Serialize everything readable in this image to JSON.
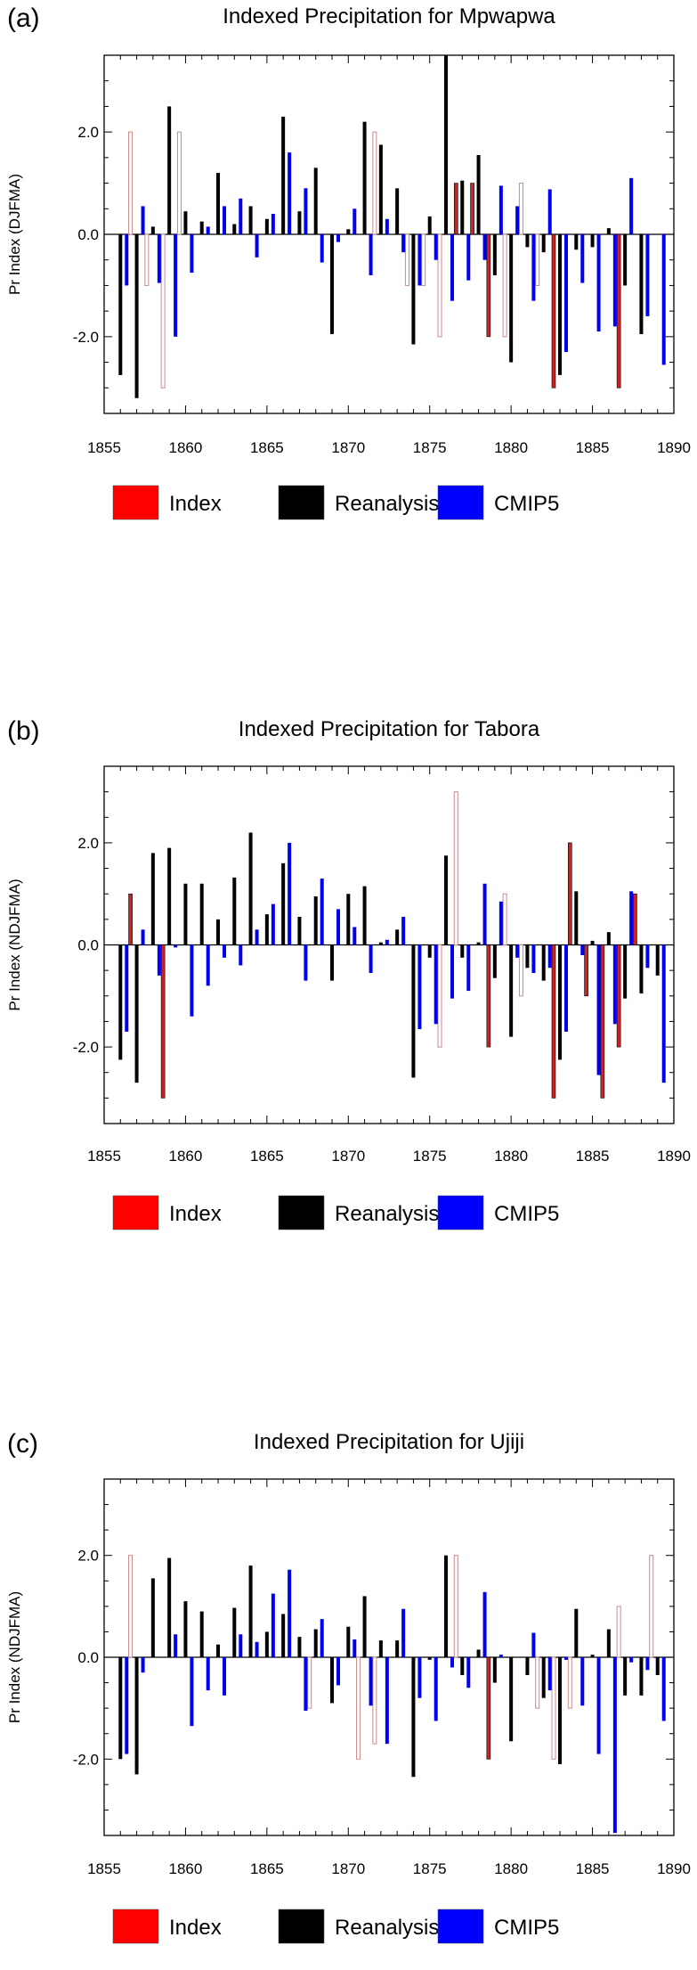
{
  "legend": [
    {
      "label": "Index",
      "color": "#ff0000"
    },
    {
      "label": "Reanalysis",
      "color": "#000000"
    },
    {
      "label": "CMIP5",
      "color": "#0000ff"
    }
  ],
  "colors": {
    "index_solid": "#cc2222",
    "index_outline": "#c98a8a",
    "reanalysis": "#000000",
    "cmip5": "#0000ee"
  },
  "chart_data": [
    {
      "type": "bar",
      "panel_label": "(a)",
      "title": "Indexed Precipitation for Mpwapwa",
      "ylabel": "Pr Index (DJFMA)",
      "xlim": [
        1855,
        1890
      ],
      "ylim": [
        -3.5,
        3.5
      ],
      "x_ticks": [
        1855,
        1860,
        1865,
        1870,
        1875,
        1880,
        1885,
        1890
      ],
      "y_ticks": [
        -2.0,
        0.0,
        2.0
      ],
      "y_tick_labels": [
        "-2.0",
        "0.0",
        "2.0"
      ],
      "years": [
        1856,
        1857,
        1858,
        1859,
        1860,
        1861,
        1862,
        1863,
        1864,
        1865,
        1866,
        1867,
        1868,
        1869,
        1870,
        1871,
        1872,
        1873,
        1874,
        1875,
        1876,
        1877,
        1878,
        1879,
        1880,
        1881,
        1882,
        1883,
        1884,
        1885,
        1886,
        1887,
        1888,
        1889
      ],
      "series": [
        {
          "name": "Index",
          "values": [
            0,
            2,
            -1,
            -3,
            2,
            0,
            0,
            0,
            0,
            0,
            0,
            0,
            0,
            0,
            0,
            0,
            2,
            0,
            -1,
            -1,
            -2,
            1,
            1,
            -2,
            -2,
            1,
            -1,
            -3,
            0,
            0,
            0,
            -3,
            0,
            0
          ],
          "style": [
            "n",
            "o",
            "o",
            "o",
            "o",
            "n",
            "n",
            "n",
            "n",
            "n",
            "n",
            "n",
            "n",
            "n",
            "n",
            "n",
            "o",
            "n",
            "o",
            "o",
            "o",
            "s",
            "s",
            "s",
            "o",
            "o",
            "o",
            "s",
            "n",
            "n",
            "n",
            "s",
            "n",
            "n"
          ]
        },
        {
          "name": "Reanalysis",
          "values": [
            -2.75,
            -3.2,
            0.15,
            2.5,
            0.45,
            0.25,
            1.2,
            0.2,
            0.55,
            0.3,
            2.3,
            0.45,
            1.3,
            -1.95,
            0.1,
            2.2,
            1.75,
            0.9,
            -2.15,
            0.35,
            3.5,
            1.05,
            1.55,
            -0.8,
            -2.5,
            -0.25,
            -0.35,
            -2.75,
            -0.3,
            -0.25,
            0.12,
            -1.0,
            -1.95,
            0
          ],
          "color": "#000000"
        },
        {
          "name": "CMIP5",
          "values": [
            -1.0,
            0.55,
            -0.95,
            -2.0,
            -0.75,
            0.15,
            0.55,
            0.7,
            -0.45,
            0.4,
            1.6,
            0.9,
            -0.55,
            -0.15,
            0.5,
            -0.8,
            0.3,
            -0.35,
            -1.0,
            -0.5,
            -1.3,
            -0.9,
            -0.5,
            0.95,
            0.55,
            -1.3,
            0.88,
            -2.3,
            -0.95,
            -1.9,
            -1.8,
            1.1,
            -1.6,
            -2.55
          ],
          "color": "#0000ee"
        }
      ]
    },
    {
      "type": "bar",
      "panel_label": "(b)",
      "title": "Indexed Precipitation for Tabora",
      "ylabel": "Pr Index (NDJFMA)",
      "xlim": [
        1855,
        1890
      ],
      "ylim": [
        -3.5,
        3.5
      ],
      "x_ticks": [
        1855,
        1860,
        1865,
        1870,
        1875,
        1880,
        1885,
        1890
      ],
      "y_ticks": [
        -2.0,
        0.0,
        2.0
      ],
      "y_tick_labels": [
        "-2.0",
        "0.0",
        "2.0"
      ],
      "years": [
        1856,
        1857,
        1858,
        1859,
        1860,
        1861,
        1862,
        1863,
        1864,
        1865,
        1866,
        1867,
        1868,
        1869,
        1870,
        1871,
        1872,
        1873,
        1874,
        1875,
        1876,
        1877,
        1878,
        1879,
        1880,
        1881,
        1882,
        1883,
        1884,
        1885,
        1886,
        1887,
        1888,
        1889
      ],
      "series": [
        {
          "name": "Index",
          "values": [
            0,
            1,
            0,
            -3,
            0,
            0,
            0,
            0,
            0,
            0,
            0,
            0,
            0,
            0,
            0,
            0,
            0,
            0,
            0,
            0,
            -2,
            3,
            0,
            -2,
            1,
            -1,
            0,
            -3,
            2,
            -1,
            -3,
            -2,
            1,
            0
          ],
          "style": [
            "n",
            "s",
            "n",
            "s",
            "n",
            "n",
            "n",
            "n",
            "n",
            "n",
            "n",
            "n",
            "n",
            "n",
            "n",
            "n",
            "n",
            "n",
            "n",
            "n",
            "o",
            "o",
            "n",
            "s",
            "o",
            "o",
            "n",
            "s",
            "s",
            "s",
            "s",
            "s",
            "s",
            "n"
          ]
        },
        {
          "name": "Reanalysis",
          "values": [
            -2.25,
            -2.7,
            1.8,
            1.9,
            1.2,
            1.2,
            0.5,
            1.32,
            2.2,
            0.6,
            1.6,
            0.55,
            0.95,
            -0.7,
            1.0,
            1.15,
            0.05,
            0.3,
            -2.6,
            -0.25,
            1.75,
            -0.25,
            0.05,
            -0.65,
            -1.8,
            -0.45,
            -0.7,
            -2.25,
            1.05,
            0.08,
            0.25,
            -1.05,
            -0.95,
            -0.6
          ],
          "color": "#000000"
        },
        {
          "name": "CMIP5",
          "values": [
            -1.7,
            0.3,
            -0.6,
            -0.05,
            -1.4,
            -0.8,
            -0.25,
            -0.4,
            0.3,
            0.8,
            2.0,
            -0.7,
            1.3,
            0.7,
            0.35,
            -0.55,
            0.1,
            0.55,
            -1.65,
            -1.55,
            -1.05,
            -0.9,
            1.2,
            0.85,
            -0.25,
            -0.55,
            -0.45,
            -1.7,
            -0.2,
            -2.55,
            -1.55,
            1.05,
            -0.45,
            -2.7
          ],
          "color": "#0000ee"
        }
      ]
    },
    {
      "type": "bar",
      "panel_label": "(c)",
      "title": "Indexed Precipitation for Ujiji",
      "ylabel": "Pr Index (NDJFMA)",
      "xlim": [
        1855,
        1890
      ],
      "ylim": [
        -3.5,
        3.5
      ],
      "x_ticks": [
        1855,
        1860,
        1865,
        1870,
        1875,
        1880,
        1885,
        1890
      ],
      "y_ticks": [
        -2.0,
        0.0,
        2.0
      ],
      "y_tick_labels": [
        "-2.0",
        "0.0",
        "2.0"
      ],
      "years": [
        1856,
        1857,
        1858,
        1859,
        1860,
        1861,
        1862,
        1863,
        1864,
        1865,
        1866,
        1867,
        1868,
        1869,
        1870,
        1871,
        1872,
        1873,
        1874,
        1875,
        1876,
        1877,
        1878,
        1879,
        1880,
        1881,
        1882,
        1883,
        1884,
        1885,
        1886,
        1887,
        1888,
        1889
      ],
      "series": [
        {
          "name": "Index",
          "values": [
            0,
            2,
            0,
            0,
            0,
            0,
            0,
            0,
            0,
            0,
            0,
            0,
            -1,
            0,
            0,
            -2,
            -1.7,
            0,
            0,
            0,
            0,
            2,
            0,
            -2,
            0,
            0,
            -1,
            -2,
            -1,
            0,
            0,
            1,
            0,
            2
          ],
          "style": [
            "n",
            "o",
            "n",
            "n",
            "n",
            "n",
            "n",
            "n",
            "n",
            "n",
            "n",
            "n",
            "o",
            "n",
            "n",
            "o",
            "o",
            "n",
            "n",
            "n",
            "n",
            "o",
            "n",
            "s",
            "n",
            "n",
            "o",
            "o",
            "o",
            "n",
            "n",
            "o",
            "n",
            "o"
          ]
        },
        {
          "name": "Reanalysis",
          "values": [
            -2.0,
            -2.3,
            1.55,
            1.95,
            1.1,
            0.9,
            0.25,
            0.97,
            1.8,
            0.5,
            0.85,
            0.4,
            0.55,
            -0.9,
            0.6,
            1.2,
            0.33,
            0.33,
            -2.35,
            -0.05,
            2.0,
            -0.35,
            0.15,
            -0.5,
            -1.65,
            -0.35,
            -0.8,
            -2.1,
            0.95,
            0.05,
            0.55,
            -0.75,
            -0.75,
            -0.35
          ],
          "color": "#000000"
        },
        {
          "name": "CMIP5",
          "values": [
            -1.9,
            -0.3,
            0.0,
            0.45,
            -1.35,
            -0.65,
            -0.75,
            0.45,
            0.3,
            1.25,
            1.72,
            -1.05,
            0.75,
            -0.55,
            0.35,
            -0.95,
            -1.7,
            0.95,
            -0.8,
            -1.25,
            -0.2,
            -0.6,
            1.28,
            0.05,
            0.0,
            0.48,
            -0.65,
            -0.05,
            -0.95,
            -1.9,
            -3.45,
            -0.1,
            -0.25,
            -1.25
          ],
          "color": "#0000ee"
        }
      ]
    }
  ]
}
